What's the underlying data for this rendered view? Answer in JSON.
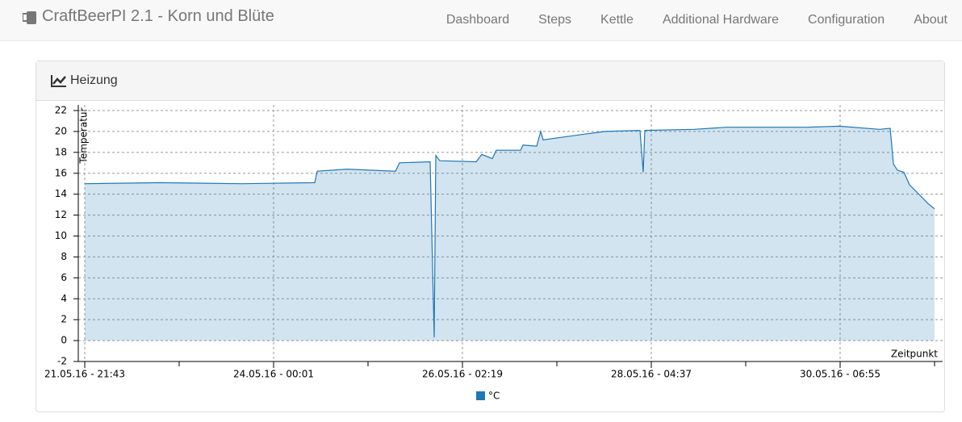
{
  "navbar": {
    "brand": "CraftBeerPI 2.1 - Korn und Blüte",
    "links": [
      "Dashboard",
      "Steps",
      "Kettle",
      "Additional Hardware",
      "Configuration",
      "About"
    ]
  },
  "panel": {
    "title": "Heizung"
  },
  "chart_data": {
    "type": "area",
    "y_label": "Temperatur",
    "x_label": "Zeitpunkt",
    "x": [
      "21.05.16 - 21:43",
      "22.05.16 - 18:08",
      "23.05.16 - 15:38",
      "24.05.16 - 10:59",
      "24.05.16 - 11:37",
      "24.05.16 - 19:35",
      "25.05.16 - 08:28",
      "25.05.16 - 09:33",
      "25.05.16 - 17:43",
      "25.05.16 - 18:47",
      "25.05.16 - 19:13",
      "25.05.16 - 20:18",
      "26.05.16 - 05:58",
      "26.05.16 - 07:28",
      "26.05.16 - 10:16",
      "26.05.16 - 11:20",
      "26.05.16 - 17:47",
      "26.05.16 - 18:26",
      "26.05.16 - 22:05",
      "26.05.16 - 23:10",
      "26.05.16 - 23:49",
      "27.05.16 - 09:55",
      "27.05.16 - 16:22",
      "28.05.16 - 01:36",
      "28.05.16 - 02:28",
      "28.05.16 - 02:54",
      "28.05.16 - 16:00",
      "29.05.16 - 00:36",
      "29.05.16 - 22:06",
      "30.05.16 - 06:42",
      "30.05.16 - 17:27",
      "30.05.16 - 20:14",
      "30.05.16 - 21:06",
      "30.05.16 - 22:10",
      "30.05.16 - 23:54",
      "31.05.16 - 01:24",
      "31.05.16 - 04:11",
      "31.05.16 - 06:20",
      "31.05.16 - 08:04"
    ],
    "series": [
      {
        "name": "°C",
        "color": "#1f77b4",
        "values": [
          15.0,
          15.1,
          15.0,
          15.1,
          16.2,
          16.4,
          16.2,
          17.0,
          17.1,
          0.3,
          17.7,
          17.2,
          17.1,
          17.8,
          17.4,
          18.2,
          18.2,
          18.7,
          18.6,
          20.0,
          19.2,
          19.7,
          20.0,
          20.1,
          16.1,
          20.1,
          20.2,
          20.4,
          20.4,
          20.5,
          20.2,
          20.3,
          16.9,
          16.3,
          16.1,
          14.9,
          13.9,
          13.1,
          12.6
        ]
      }
    ],
    "xlim": [
      "21.05.16 - 21:43",
      "31.05.16 - 08:04"
    ],
    "xticks": [
      "21.05.16 - 21:43",
      "24.05.16 - 00:01",
      "26.05.16 - 02:19",
      "28.05.16 - 04:37",
      "30.05.16 - 06:55"
    ],
    "ylim": [
      -2,
      22
    ],
    "yticks": [
      -2,
      0,
      2,
      4,
      6,
      8,
      10,
      12,
      14,
      16,
      18,
      20,
      22
    ],
    "grid": true
  }
}
